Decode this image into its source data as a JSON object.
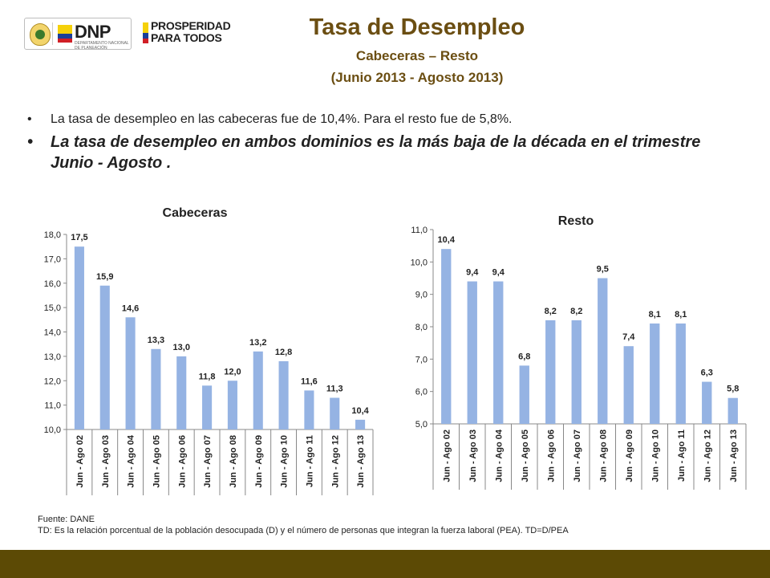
{
  "logos": {
    "dnp": "DNP",
    "dnp_subtitle": "DEPARTAMENTO NACIONAL DE PLANEACIÓN",
    "prosperidad": "PROSPERIDAD\nPARA TODOS"
  },
  "header": {
    "title": "Tasa de Desempleo",
    "subtitle": "Cabeceras – Resto",
    "period": "(Junio 2013 - Agosto 2013)"
  },
  "bullets": {
    "b1": "La tasa de desempleo en las cabeceras fue de 10,4%. Para el resto fue de 5,8%.",
    "b2": "La tasa de desempleo en ambos dominios es la más baja de la década en el trimestre Junio - Agosto .",
    "marker": "•"
  },
  "chart_data": [
    {
      "type": "bar",
      "title": "Cabeceras",
      "categories": [
        "Jun - Ago 02",
        "Jun - Ago 03",
        "Jun - Ago 04",
        "Jun - Ago 05",
        "Jun - Ago 06",
        "Jun - Ago 07",
        "Jun - Ago 08",
        "Jun - Ago 09",
        "Jun - Ago 10",
        "Jun - Ago 11",
        "Jun - Ago 12",
        "Jun - Ago 13"
      ],
      "values": [
        17.5,
        15.9,
        14.6,
        13.3,
        13.0,
        11.8,
        12.0,
        13.2,
        12.8,
        11.6,
        11.3,
        10.4
      ],
      "labels": [
        "17,5",
        "15,9",
        "14,6",
        "13,3",
        "13,0",
        "11,8",
        "12,0",
        "13,2",
        "12,8",
        "11,6",
        "11,3",
        "10,4"
      ],
      "ylim": [
        10.0,
        18.0
      ],
      "yticks": [
        "10,0",
        "11,0",
        "12,0",
        "13,0",
        "14,0",
        "15,0",
        "16,0",
        "17,0",
        "18,0"
      ],
      "bar_color": "#95b3e3",
      "grid": false
    },
    {
      "type": "bar",
      "title": "Resto",
      "categories": [
        "Jun - Ago 02",
        "Jun - Ago 03",
        "Jun - Ago 04",
        "Jun - Ago 05",
        "Jun - Ago 06",
        "Jun - Ago 07",
        "Jun - Ago 08",
        "Jun - Ago 09",
        "Jun - Ago 10",
        "Jun - Ago 11",
        "Jun - Ago 12",
        "Jun - Ago 13"
      ],
      "values": [
        10.4,
        9.4,
        9.4,
        6.8,
        8.2,
        8.2,
        9.5,
        7.4,
        8.1,
        8.1,
        6.3,
        5.8
      ],
      "labels": [
        "10,4",
        "9,4",
        "9,4",
        "6,8",
        "8,2",
        "8,2",
        "9,5",
        "7,4",
        "8,1",
        "8,1",
        "6,3",
        "5,8"
      ],
      "ylim": [
        5.0,
        11.0
      ],
      "yticks": [
        "5,0",
        "6,0",
        "7,0",
        "8,0",
        "9,0",
        "10,0",
        "11,0"
      ],
      "bar_color": "#95b3e3",
      "grid": false
    }
  ],
  "footnote": {
    "source": "Fuente: DANE",
    "definition": "TD: Es la relación porcentual de la población desocupada (D) y el número de personas que integran la fuerza laboral (PEA). TD=D/PEA"
  },
  "colors": {
    "title": "#6b4e12",
    "footer_bar": "#5c4a05"
  }
}
